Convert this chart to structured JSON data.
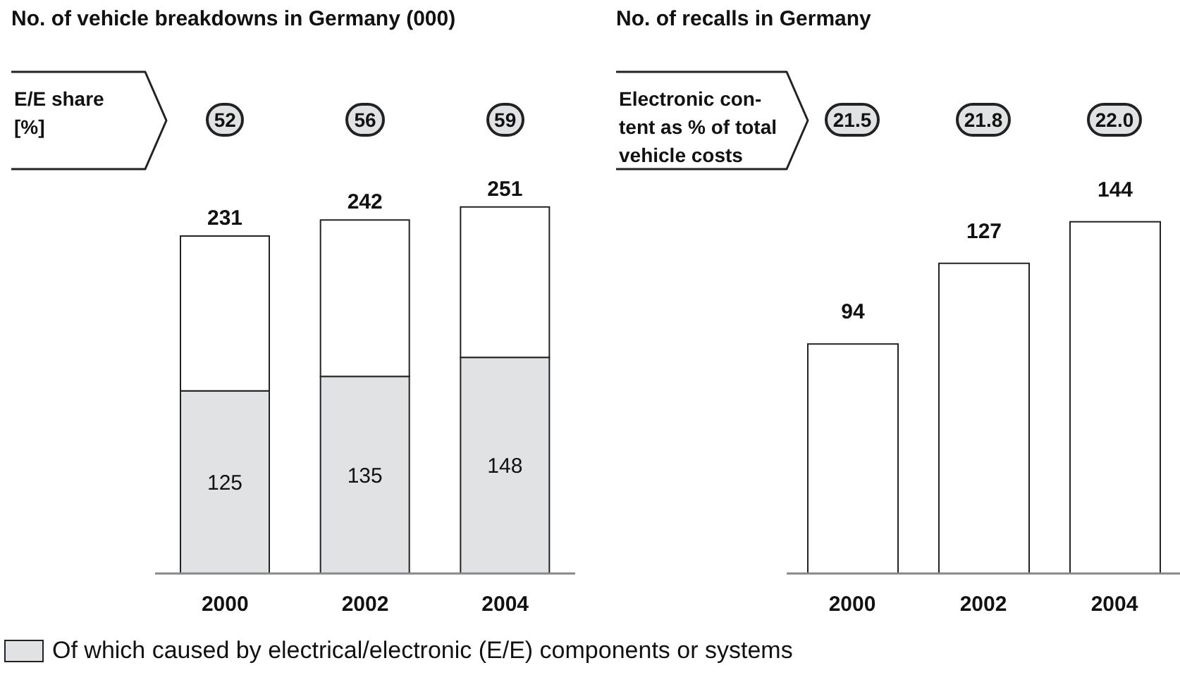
{
  "chart_data": [
    {
      "type": "bar",
      "title": "No. of vehicle breakdowns in Germany (000)",
      "categories": [
        "2000",
        "2002",
        "2004"
      ],
      "stacked": true,
      "legend": "bottom",
      "series": [
        {
          "name": "Of which caused by electrical/electronic (E/E) components or systems",
          "color": "#e1e2e3",
          "values": [
            125,
            135,
            148
          ],
          "value_labels": [
            "125",
            "135",
            "148"
          ]
        },
        {
          "color": "#ffffff",
          "values": [
            106,
            107,
            103
          ]
        }
      ],
      "totals": [
        "231",
        "242",
        "251"
      ],
      "annotations": [
        "E/E share [%]",
        "52",
        "56",
        "59"
      ]
    },
    {
      "type": "bar",
      "title": "No. of recalls in Germany",
      "categories": [
        "2000",
        "2002",
        "2004"
      ],
      "values": [
        94,
        127,
        144
      ],
      "color": "#ffffff",
      "data_labels": true,
      "annotations": [
        "Electronic con-\ntent as % of total\nvehicle costs",
        "21.5",
        "21.8",
        "22.0"
      ]
    }
  ]
}
